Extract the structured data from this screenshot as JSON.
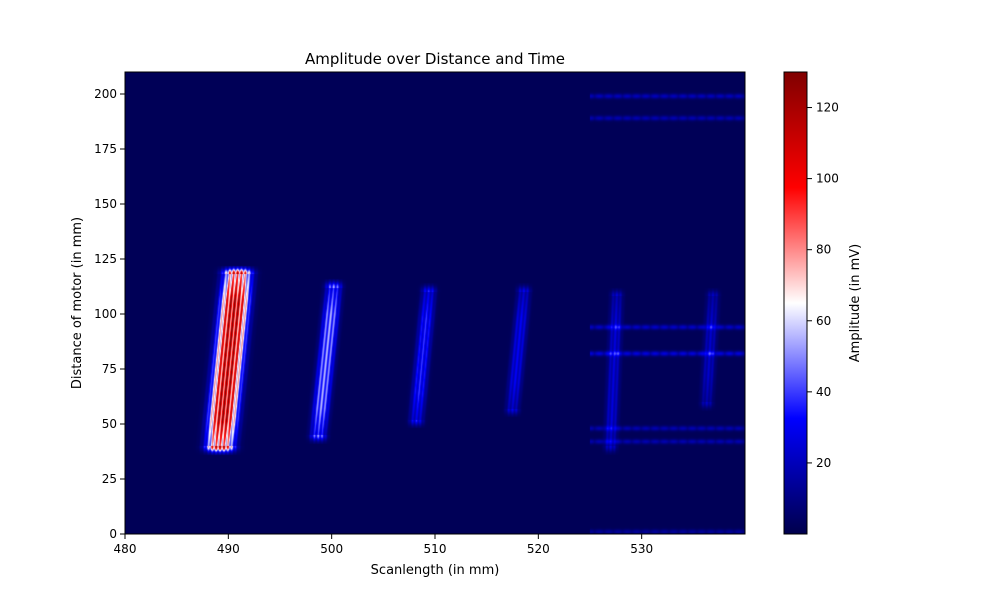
{
  "chart_data": {
    "type": "heatmap",
    "title": "Amplitude over Distance and Time",
    "xlabel": "Scanlength  (in mm)",
    "ylabel": "Distance of motor (in mm)",
    "xlim": [
      480,
      540
    ],
    "ylim": [
      0,
      210
    ],
    "x_ticks": [
      480,
      490,
      500,
      510,
      520,
      530
    ],
    "y_ticks": [
      0,
      25,
      50,
      75,
      100,
      125,
      150,
      175,
      200
    ],
    "colorbar": {
      "label": "Amplitude (in mV)",
      "range": [
        0,
        130
      ],
      "ticks": [
        20,
        40,
        60,
        80,
        100,
        120
      ],
      "colormap": "seismic",
      "colors": [
        "#00004c",
        "#0000ff",
        "#ffffff",
        "#ff0000",
        "#800000"
      ]
    },
    "background_amplitude": 2,
    "features": [
      {
        "shape": "tilted_band",
        "x_bottom": 489.2,
        "x_top": 490.9,
        "y_start": 40,
        "y_end": 118,
        "width": 2.8,
        "peak_amplitude": 130
      },
      {
        "shape": "tilted_band",
        "x_bottom": 498.7,
        "x_top": 500.2,
        "y_start": 45,
        "y_end": 112,
        "width": 1.6,
        "peak_amplitude": 55
      },
      {
        "shape": "tilted_band",
        "x_bottom": 508.2,
        "x_top": 509.4,
        "y_start": 52,
        "y_end": 110,
        "width": 1.4,
        "peak_amplitude": 38
      },
      {
        "shape": "tilted_band",
        "x_bottom": 517.5,
        "x_top": 518.6,
        "y_start": 57,
        "y_end": 110,
        "width": 1.3,
        "peak_amplitude": 30
      },
      {
        "shape": "tilted_band",
        "x_bottom": 527.0,
        "x_top": 527.6,
        "y_start": 40,
        "y_end": 108,
        "width": 1.2,
        "peak_amplitude": 25
      },
      {
        "shape": "tilted_band",
        "x_bottom": 536.3,
        "x_top": 536.9,
        "y_start": 60,
        "y_end": 108,
        "width": 1.2,
        "peak_amplitude": 22
      },
      {
        "shape": "stripe",
        "y": 199,
        "x_from": 525,
        "x_to": 540,
        "peak_amplitude": 18
      },
      {
        "shape": "stripe",
        "y": 189,
        "x_from": 525,
        "x_to": 540,
        "peak_amplitude": 16
      },
      {
        "shape": "stripe",
        "y": 94,
        "x_from": 525,
        "x_to": 540,
        "peak_amplitude": 20
      },
      {
        "shape": "stripe",
        "y": 82,
        "x_from": 525,
        "x_to": 540,
        "peak_amplitude": 24
      },
      {
        "shape": "stripe",
        "y": 48,
        "x_from": 525,
        "x_to": 540,
        "peak_amplitude": 16
      },
      {
        "shape": "stripe",
        "y": 42,
        "x_from": 525,
        "x_to": 540,
        "peak_amplitude": 16
      },
      {
        "shape": "stripe",
        "y": 1,
        "x_from": 525,
        "x_to": 540,
        "peak_amplitude": 12
      }
    ]
  }
}
